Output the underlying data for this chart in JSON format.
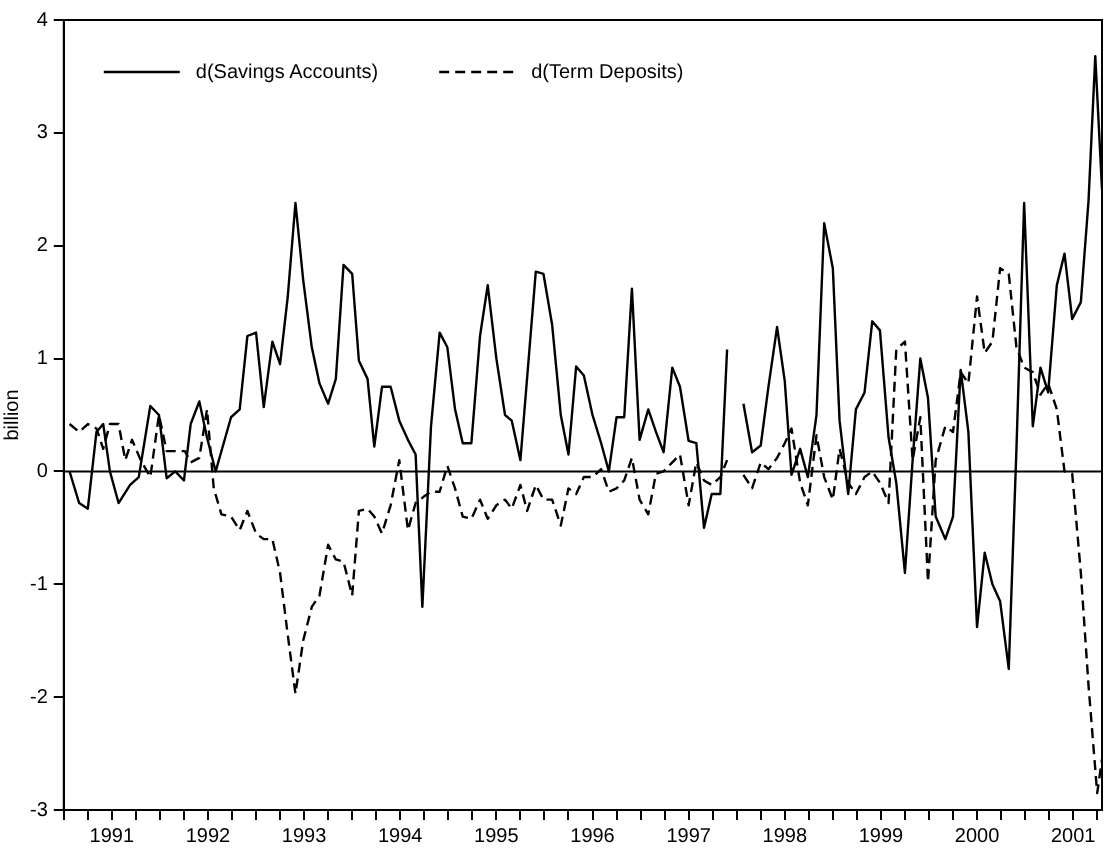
{
  "chart_data": {
    "type": "line",
    "ylabel": "billion",
    "legend": "top left",
    "marker": "none",
    "xlim": [
      1991,
      2001.8
    ],
    "ylim": [
      -3,
      4
    ],
    "yticks": [
      -3,
      -2,
      -1,
      0,
      1,
      2,
      3,
      4
    ],
    "xticks": [
      {
        "value": 1991,
        "label": null
      },
      {
        "value": 1991.25,
        "label": null
      },
      {
        "value": 1991.5,
        "label": "1991"
      },
      {
        "value": 1991.75,
        "label": null
      },
      {
        "value": 1992,
        "label": null
      },
      {
        "value": 1992.25,
        "label": null
      },
      {
        "value": 1992.5,
        "label": "1992"
      },
      {
        "value": 1992.75,
        "label": null
      },
      {
        "value": 1993,
        "label": null
      },
      {
        "value": 1993.25,
        "label": null
      },
      {
        "value": 1993.5,
        "label": "1993"
      },
      {
        "value": 1993.75,
        "label": null
      },
      {
        "value": 1994,
        "label": null
      },
      {
        "value": 1994.25,
        "label": null
      },
      {
        "value": 1994.5,
        "label": "1994"
      },
      {
        "value": 1994.75,
        "label": null
      },
      {
        "value": 1995,
        "label": null
      },
      {
        "value": 1995.25,
        "label": null
      },
      {
        "value": 1995.5,
        "label": "1995"
      },
      {
        "value": 1995.75,
        "label": null
      },
      {
        "value": 1996,
        "label": null
      },
      {
        "value": 1996.25,
        "label": null
      },
      {
        "value": 1996.5,
        "label": "1996"
      },
      {
        "value": 1996.75,
        "label": null
      },
      {
        "value": 1997,
        "label": null
      },
      {
        "value": 1997.25,
        "label": null
      },
      {
        "value": 1997.5,
        "label": "1997"
      },
      {
        "value": 1997.75,
        "label": null
      },
      {
        "value": 1998,
        "label": null
      },
      {
        "value": 1998.25,
        "label": null
      },
      {
        "value": 1998.5,
        "label": "1998"
      },
      {
        "value": 1998.75,
        "label": null
      },
      {
        "value": 1999,
        "label": null
      },
      {
        "value": 1999.25,
        "label": null
      },
      {
        "value": 1999.5,
        "label": "1999"
      },
      {
        "value": 1999.75,
        "label": null
      },
      {
        "value": 2000,
        "label": null
      },
      {
        "value": 2000.25,
        "label": null
      },
      {
        "value": 2000.5,
        "label": "2000"
      },
      {
        "value": 2000.75,
        "label": null
      },
      {
        "value": 2001,
        "label": null
      },
      {
        "value": 2001.25,
        "label": null
      },
      {
        "value": 2001.5,
        "label": "2001"
      },
      {
        "value": 2001.75,
        "label": null
      }
    ],
    "ref_lines": [
      {
        "axis": "y",
        "value": 0,
        "color": "#000000"
      }
    ],
    "series": [
      {
        "name": "d(Savings Accounts)",
        "color": "#000000",
        "line_style": "solid",
        "x": [
          1991.06,
          1991.16,
          1991.25,
          1991.34,
          1991.41,
          1991.48,
          1991.57,
          1991.69,
          1991.78,
          1991.9,
          1991.99,
          1992.07,
          1992.16,
          1992.25,
          1992.32,
          1992.41,
          1992.49,
          1992.58,
          1992.67,
          1992.74,
          1992.83,
          1992.91,
          1993.0,
          1993.08,
          1993.17,
          1993.25,
          1993.33,
          1993.41,
          1993.49,
          1993.58,
          1993.66,
          1993.75,
          1993.83,
          1993.91,
          1994.0,
          1994.07,
          1994.16,
          1994.23,
          1994.31,
          1994.4,
          1994.49,
          1994.58,
          1994.66,
          1994.73,
          1994.82,
          1994.91,
          1994.99,
          1995.07,
          1995.15,
          1995.24,
          1995.33,
          1995.41,
          1995.5,
          1995.59,
          1995.66,
          1995.75,
          1995.91,
          1995.99,
          1996.08,
          1996.17,
          1996.25,
          1996.33,
          1996.41,
          1996.5,
          1996.59,
          1996.67,
          1996.75,
          1996.83,
          1996.91,
          1996.99,
          1997.08,
          1997.16,
          1997.24,
          1997.33,
          1997.41,
          1997.5,
          1997.58,
          1997.66,
          1997.74,
          1997.83,
          1997.9,
          1997.98,
          1998.07,
          1998.16,
          1998.25,
          1998.33,
          1998.42,
          1998.5,
          1998.57,
          1998.66,
          1998.74,
          1998.83,
          1998.91,
          1999.0,
          1999.07,
          1999.16,
          1999.24,
          1999.33,
          1999.41,
          1999.49,
          1999.58,
          1999.66,
          1999.75,
          1999.83,
          1999.91,
          1999.99,
          2000.07,
          2000.17,
          2000.25,
          2000.33,
          2000.41,
          2000.5,
          2000.58,
          2000.66,
          2000.74,
          2000.83,
          2000.91,
          2000.99,
          2001.08,
          2001.16,
          2001.24,
          2001.33,
          2001.41,
          2001.49,
          2001.58,
          2001.66,
          2001.73,
          2001.8
        ],
        "values": [
          0,
          -0.28,
          -0.33,
          0.35,
          0.42,
          0,
          -0.28,
          -0.12,
          -0.05,
          0.58,
          0.5,
          -0.06,
          0,
          -0.08,
          0.42,
          0.62,
          0.3,
          0,
          0.27,
          0.48,
          0.55,
          1.2,
          1.23,
          0.57,
          1.15,
          0.95,
          1.55,
          2.38,
          1.7,
          1.1,
          0.78,
          0.6,
          0.82,
          1.83,
          1.75,
          0.98,
          0.82,
          0.22,
          0.75,
          0.75,
          0.45,
          0.28,
          0.15,
          -1.2,
          0.4,
          1.23,
          1.1,
          0.55,
          0.25,
          0.25,
          1.2,
          1.65,
          1.0,
          0.5,
          0.45,
          0.1,
          1.77,
          1.75,
          1.3,
          0.5,
          0.15,
          0.93,
          0.85,
          0.5,
          0.25,
          0,
          0.48,
          0.48,
          1.62,
          0.28,
          0.55,
          0.35,
          0.17,
          0.92,
          0.75,
          0.27,
          0.25,
          -0.5,
          -0.2,
          -0.2,
          1.08,
          null,
          0.6,
          0.17,
          0.23,
          0.75,
          1.28,
          0.8,
          -0.03,
          0.2,
          -0.05,
          0.5,
          2.2,
          1.8,
          0.45,
          -0.2,
          0.55,
          0.7,
          1.33,
          1.25,
          0.3,
          -0.1,
          -0.9,
          0.1,
          1.0,
          0.65,
          -0.4,
          -0.6,
          -0.4,
          0.9,
          0.35,
          -1.38,
          -0.72,
          -1.0,
          -1.15,
          -1.75,
          0.2,
          2.38,
          0.4,
          0.92,
          0.7,
          1.65,
          1.93,
          1.35,
          1.5,
          2.4,
          3.68,
          2.5
        ]
      },
      {
        "name": "d(Term Deposits)",
        "color": "#000000",
        "line_style": "dashed",
        "x": [
          1991.06,
          1991.16,
          1991.25,
          1991.34,
          1991.41,
          1991.48,
          1991.57,
          1991.64,
          1991.71,
          1991.8,
          1991.9,
          1991.99,
          1992.07,
          1992.16,
          1992.26,
          1992.32,
          1992.41,
          1992.49,
          1992.56,
          1992.64,
          1992.74,
          1992.83,
          1992.91,
          1993.0,
          1993.08,
          1993.17,
          1993.25,
          1993.33,
          1993.41,
          1993.49,
          1993.58,
          1993.66,
          1993.75,
          1993.83,
          1993.91,
          1994.0,
          1994.07,
          1994.16,
          1994.23,
          1994.31,
          1994.4,
          1994.49,
          1994.58,
          1994.66,
          1994.75,
          1994.82,
          1994.91,
          1994.99,
          1995.07,
          1995.15,
          1995.24,
          1995.33,
          1995.41,
          1995.5,
          1995.59,
          1995.66,
          1995.75,
          1995.82,
          1995.91,
          1995.99,
          1996.08,
          1996.17,
          1996.25,
          1996.33,
          1996.41,
          1996.5,
          1996.59,
          1996.67,
          1996.75,
          1996.83,
          1996.91,
          1996.99,
          1997.08,
          1997.16,
          1997.24,
          1997.33,
          1997.41,
          1997.5,
          1997.58,
          1997.66,
          1997.74,
          1997.83,
          1997.9,
          1997.98,
          1998.07,
          1998.16,
          1998.25,
          1998.33,
          1998.42,
          1998.5,
          1998.57,
          1998.66,
          1998.74,
          1998.83,
          1998.91,
          1999.0,
          1999.07,
          1999.16,
          1999.24,
          1999.33,
          1999.41,
          1999.49,
          1999.58,
          1999.66,
          1999.75,
          1999.83,
          1999.91,
          1999.99,
          2000.07,
          2000.17,
          2000.25,
          2000.33,
          2000.41,
          2000.5,
          2000.58,
          2000.66,
          2000.74,
          2000.83,
          2000.91,
          2000.99,
          2001.08,
          2001.16,
          2001.24,
          2001.33,
          2001.41,
          2001.49,
          2001.58,
          2001.66,
          2001.75,
          2001.8
        ],
        "values": [
          0.42,
          0.35,
          0.42,
          0.38,
          0.2,
          0.42,
          0.42,
          0.1,
          0.28,
          0.1,
          -0.05,
          0.5,
          0.18,
          0.18,
          0.18,
          0.08,
          0.12,
          0.55,
          -0.15,
          -0.38,
          -0.4,
          -0.52,
          -0.35,
          -0.55,
          -0.6,
          -0.6,
          -0.9,
          -1.45,
          -1.97,
          -1.5,
          -1.2,
          -1.1,
          -0.65,
          -0.78,
          -0.8,
          -1.1,
          -0.35,
          -0.33,
          -0.4,
          -0.55,
          -0.3,
          0.1,
          -0.52,
          -0.28,
          -0.22,
          -0.18,
          -0.18,
          0.05,
          -0.15,
          -0.4,
          -0.42,
          -0.25,
          -0.42,
          -0.3,
          -0.25,
          -0.33,
          -0.12,
          -0.35,
          -0.12,
          -0.25,
          -0.25,
          -0.48,
          -0.15,
          -0.2,
          -0.05,
          -0.05,
          0.02,
          -0.18,
          -0.15,
          -0.08,
          0.12,
          -0.25,
          -0.38,
          -0.02,
          0,
          0.08,
          0.15,
          -0.3,
          0.08,
          -0.08,
          -0.12,
          -0.05,
          0.1,
          null,
          -0.03,
          -0.15,
          0.08,
          0.02,
          0.12,
          0.25,
          0.38,
          -0.1,
          -0.3,
          0.32,
          -0.05,
          -0.25,
          0.2,
          -0.1,
          -0.2,
          -0.05,
          0,
          -0.1,
          -0.28,
          1.08,
          1.15,
          0.1,
          0.48,
          -0.98,
          0.1,
          0.4,
          0.35,
          0.88,
          0.78,
          1.55,
          1.05,
          1.15,
          1.8,
          1.75,
          1.1,
          0.92,
          0.88,
          0.68,
          0.78,
          0.55,
          0,
          -0.02,
          -0.9,
          -1.9,
          -2.85,
          -2.55
        ]
      }
    ]
  }
}
